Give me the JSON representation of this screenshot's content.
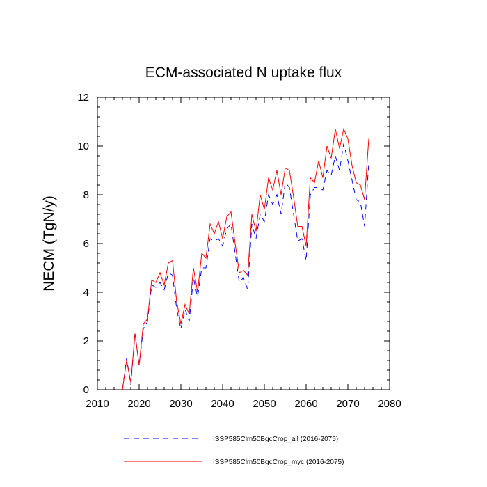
{
  "chart_data": {
    "type": "line",
    "title": "ECM-associated N uptake flux",
    "xlabel": "",
    "ylabel": "NECM  (TgN/y)",
    "xlim": [
      2010,
      2080
    ],
    "ylim": [
      0,
      12
    ],
    "x_ticks": [
      2010,
      2020,
      2030,
      2040,
      2050,
      2060,
      2070,
      2080
    ],
    "y_ticks": [
      0,
      2,
      4,
      6,
      8,
      10,
      12
    ],
    "grid": false,
    "legend_position": "bottom",
    "x": [
      2016,
      2017,
      2018,
      2019,
      2020,
      2021,
      2022,
      2023,
      2024,
      2025,
      2026,
      2027,
      2028,
      2029,
      2030,
      2031,
      2032,
      2033,
      2034,
      2035,
      2036,
      2037,
      2038,
      2039,
      2040,
      2041,
      2042,
      2043,
      2044,
      2045,
      2046,
      2047,
      2048,
      2049,
      2050,
      2051,
      2052,
      2053,
      2054,
      2055,
      2056,
      2057,
      2058,
      2059,
      2060,
      2061,
      2062,
      2063,
      2064,
      2065,
      2066,
      2067,
      2068,
      2069,
      2070,
      2071,
      2072,
      2073,
      2074,
      2075
    ],
    "series": [
      {
        "name": "ISSP585Clm50BgcCrop_all (2016-2075)",
        "color": "#0000ff",
        "style": "dashed",
        "values": [
          0.0,
          1.3,
          0.2,
          2.3,
          1.0,
          2.5,
          2.8,
          4.3,
          4.2,
          4.4,
          4.1,
          4.8,
          4.7,
          3.3,
          2.5,
          3.3,
          2.8,
          4.6,
          3.8,
          5.0,
          5.0,
          6.2,
          6.1,
          6.2,
          5.9,
          6.6,
          6.8,
          5.6,
          4.4,
          4.6,
          4.1,
          6.8,
          6.2,
          7.2,
          6.9,
          8.0,
          7.6,
          8.0,
          7.2,
          8.5,
          8.3,
          7.2,
          6.1,
          6.2,
          5.3,
          8.0,
          8.3,
          8.3,
          8.2,
          9.0,
          8.8,
          9.6,
          9.0,
          10.1,
          9.4,
          8.6,
          7.8,
          7.7,
          6.7,
          9.3
        ]
      },
      {
        "name": "ISSP585Clm50BgcCrop_myc (2016-2075)",
        "color": "#ff0000",
        "style": "solid",
        "values": [
          0.0,
          1.2,
          0.3,
          2.3,
          1.0,
          2.7,
          2.9,
          4.5,
          4.4,
          4.8,
          4.3,
          5.2,
          5.3,
          3.6,
          2.7,
          3.5,
          3.1,
          5.0,
          4.0,
          5.6,
          5.4,
          6.8,
          6.4,
          6.9,
          6.2,
          7.1,
          7.3,
          6.0,
          4.8,
          4.9,
          4.7,
          7.2,
          6.5,
          8.0,
          7.4,
          8.7,
          8.2,
          9.0,
          8.0,
          9.1,
          9.0,
          7.9,
          6.7,
          6.7,
          5.9,
          8.7,
          8.5,
          9.4,
          8.7,
          10.0,
          9.5,
          10.7,
          9.9,
          10.7,
          10.3,
          9.2,
          8.5,
          8.4,
          7.8,
          10.3
        ]
      }
    ]
  }
}
